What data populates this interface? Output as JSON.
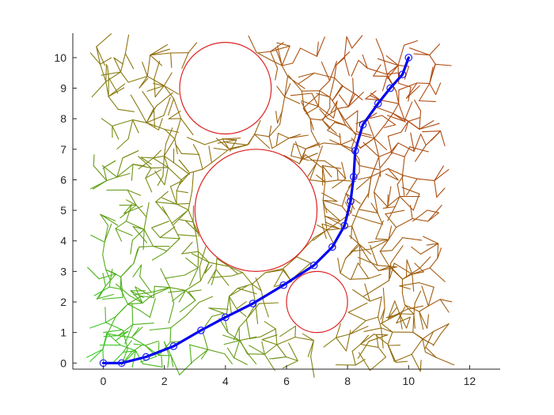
{
  "chart_data": {
    "type": "line",
    "title": "",
    "xlabel": "",
    "ylabel": "",
    "xlim": [
      -1,
      13
    ],
    "ylim": [
      -0.2,
      10.8
    ],
    "grid": false,
    "xticks": [
      0,
      2,
      4,
      6,
      8,
      10,
      12
    ],
    "yticks": [
      0,
      1,
      2,
      3,
      4,
      5,
      6,
      7,
      8,
      9,
      10
    ],
    "xtick_labels": [
      "0",
      "2",
      "4",
      "6",
      "8",
      "10",
      "12"
    ],
    "ytick_labels": [
      "0",
      "1",
      "2",
      "3",
      "4",
      "5",
      "6",
      "7",
      "8",
      "9",
      "10"
    ],
    "obstacles": [
      {
        "cx": 4.0,
        "cy": 9.0,
        "r": 1.5
      },
      {
        "cx": 5.0,
        "cy": 5.0,
        "r": 2.0
      },
      {
        "cx": 7.0,
        "cy": 2.0,
        "r": 1.0
      }
    ],
    "path": {
      "x": [
        0,
        0.6,
        1.4,
        2.3,
        3.2,
        4.0,
        4.9,
        5.9,
        6.9,
        7.5,
        7.9,
        8.1,
        8.2,
        8.25,
        8.5,
        9.0,
        9.4,
        9.8,
        10.0
      ],
      "y": [
        0,
        0.0,
        0.2,
        0.55,
        1.07,
        1.5,
        1.95,
        2.55,
        3.2,
        3.8,
        4.5,
        5.3,
        6.1,
        6.95,
        7.8,
        8.5,
        9.0,
        9.45,
        10.0
      ]
    },
    "colors": {
      "axis": "#262626",
      "path": "#0000ee",
      "markers": "#1a1aff",
      "obstacle": "#dd2222",
      "tree_start": "#33cc22",
      "tree_mid": "#8a7a10",
      "tree_end": "#b04a10"
    }
  }
}
